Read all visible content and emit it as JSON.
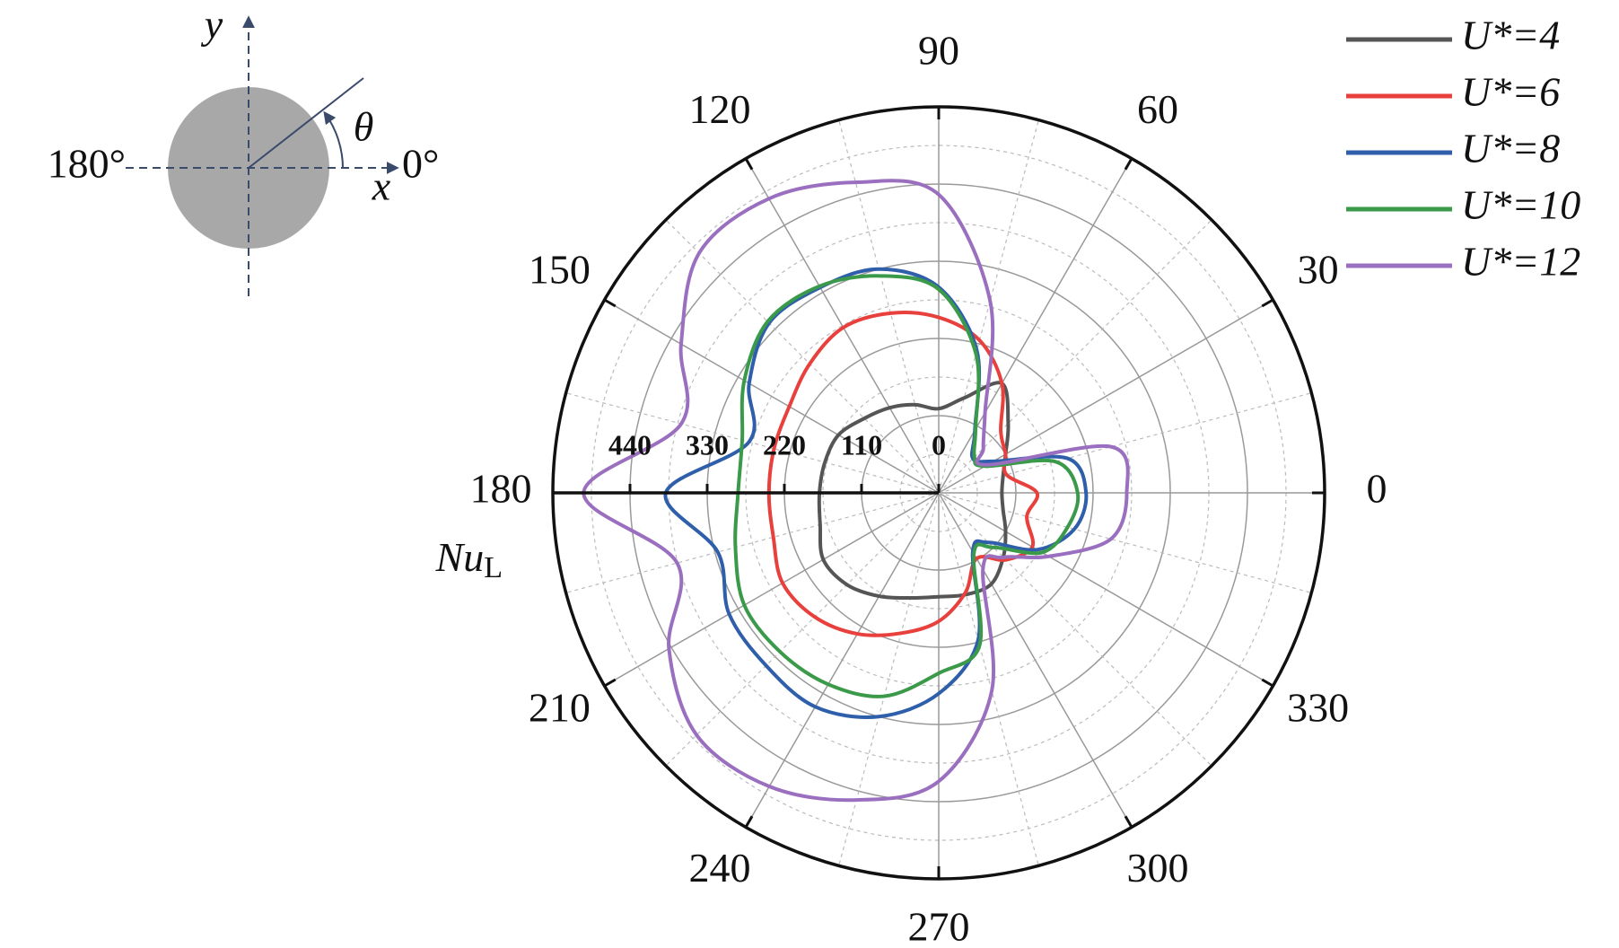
{
  "chart_data": {
    "type": "polar",
    "theta": [
      0,
      15,
      30,
      45,
      60,
      75,
      90,
      105,
      120,
      135,
      150,
      165,
      180,
      195,
      210,
      225,
      240,
      255,
      270,
      285,
      300,
      315,
      330,
      345
    ],
    "thetaticks": [
      0,
      30,
      60,
      90,
      120,
      150,
      180,
      210,
      240,
      270,
      300,
      330
    ],
    "rlim": [
      0,
      550
    ],
    "rticks": [
      0,
      110,
      220,
      330,
      440
    ],
    "r_label": "Nu",
    "r_label_sub": "L",
    "series": [
      {
        "name": "U*=4",
        "color": "#555555",
        "values": [
          90,
          95,
          110,
          140,
          180,
          140,
          120,
          130,
          140,
          150,
          165,
          168,
          170,
          175,
          190,
          185,
          170,
          155,
          148,
          150,
          150,
          130,
          110,
          95
        ]
      },
      {
        "name": "U*=6",
        "color": "#e8403c",
        "values": [
          140,
          100,
          110,
          125,
          180,
          225,
          250,
          265,
          272,
          260,
          246,
          243,
          242,
          244,
          257,
          250,
          232,
          207,
          183,
          147,
          108,
          135,
          154,
          130
        ]
      },
      {
        "name": "U*=8",
        "color": "#2f5fab",
        "values": [
          210,
          190,
          90,
          69,
          103,
          210,
          293,
          330,
          338,
          342,
          312,
          280,
          389,
          326,
          345,
          348,
          352,
          330,
          286,
          217,
          97,
          100,
          162,
          200
        ]
      },
      {
        "name": "U*=10",
        "color": "#3a9a4a",
        "values": [
          198,
          172,
          76,
          72,
          105,
          205,
          290,
          320,
          340,
          345,
          320,
          290,
          286,
          300,
          320,
          320,
          315,
          300,
          257,
          225,
          100,
          110,
          170,
          190
        ]
      },
      {
        "name": "U*=12",
        "color": "#9b6fbf",
        "values": [
          268,
          254,
          80,
          90,
          132,
          283,
          425,
          458,
          484,
          483,
          424,
          380,
          506,
          386,
          444,
          488,
          483,
          453,
          411,
          292,
          126,
          130,
          181,
          254
        ]
      }
    ]
  },
  "inset": {
    "y_label": "y",
    "x_label": "x",
    "angle_label": "θ",
    "left_label": "180°",
    "right_label": "0°"
  }
}
